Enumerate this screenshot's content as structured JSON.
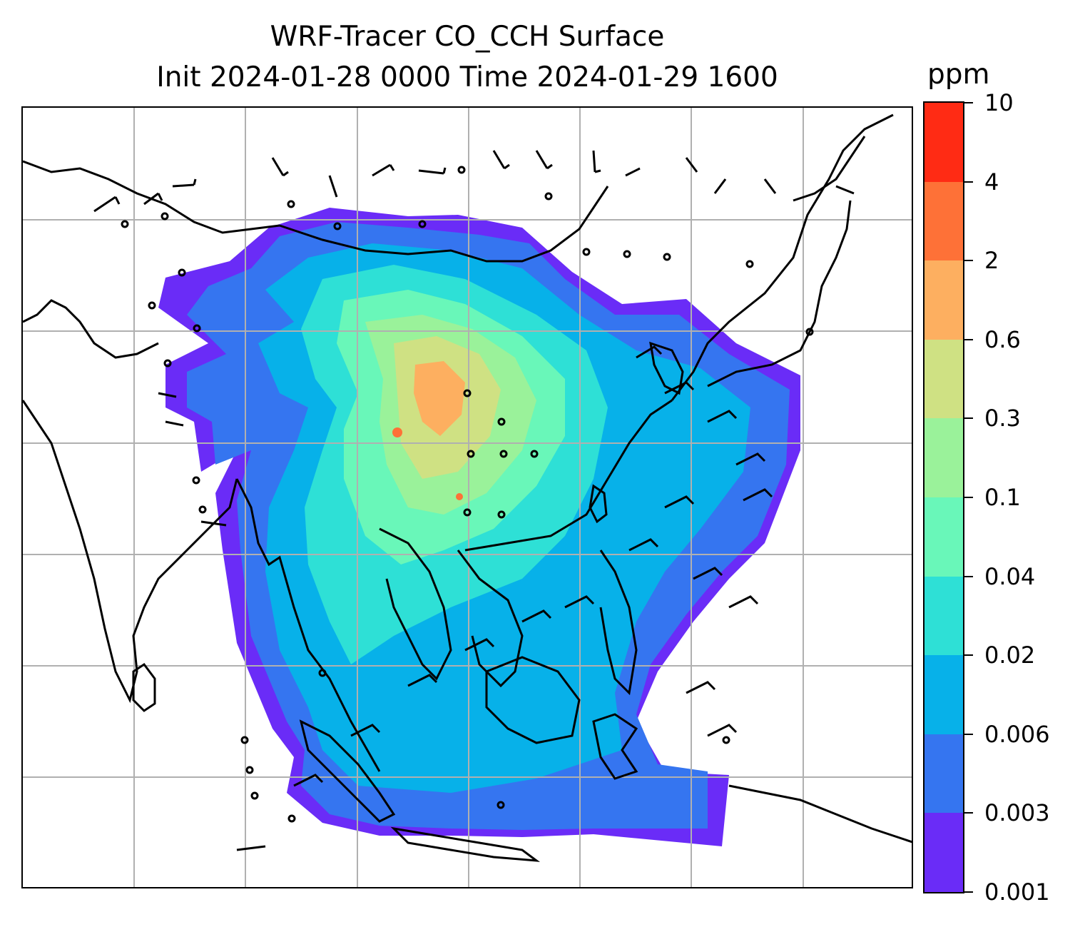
{
  "title": {
    "line1": "WRF-Tracer CO_CCH Surface",
    "line2": "Init 2024-01-28 0000 Time 2024-01-29 1600"
  },
  "colorbar": {
    "unit": "ppm",
    "levels": [
      "0.001",
      "0.003",
      "0.006",
      "0.02",
      "0.04",
      "0.1",
      "0.3",
      "0.6",
      "2",
      "4",
      "10"
    ],
    "colors": [
      "#6a2cf7",
      "#3575f0",
      "#07b1e9",
      "#2ee0d6",
      "#69f7b9",
      "#9af29a",
      "#cfe183",
      "#fdaf60",
      "#fe7137",
      "#ff2b14"
    ]
  },
  "map": {
    "region": "South and Southeast Asia, East Asia",
    "gridlines": true,
    "wind_barbs": true,
    "coastlines": true
  }
}
